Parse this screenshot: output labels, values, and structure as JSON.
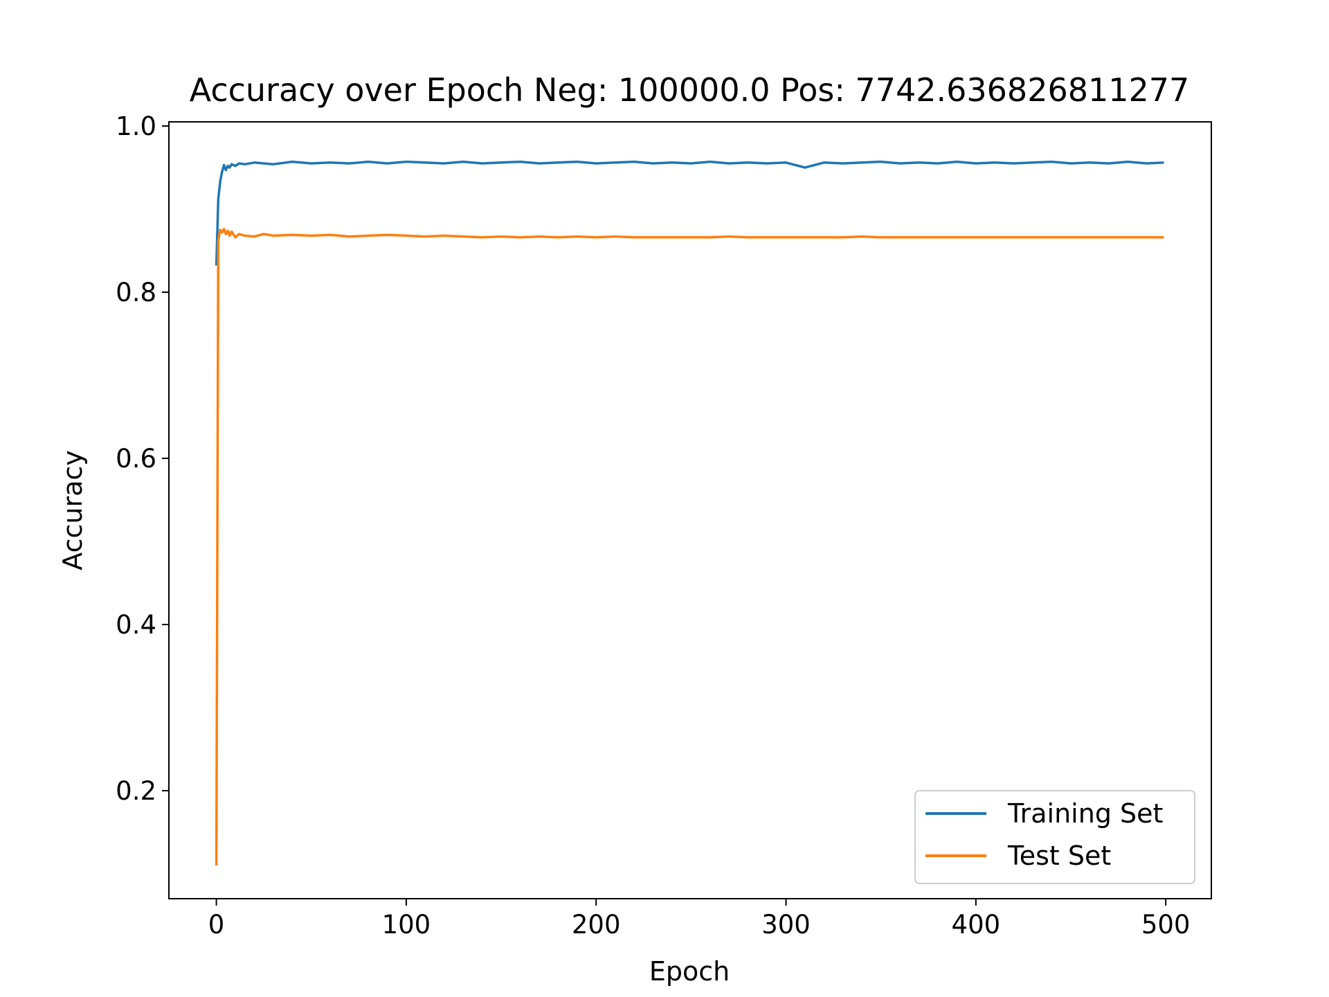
{
  "chart_data": {
    "type": "line",
    "title": "Accuracy over Epoch Neg: 100000.0 Pos: 7742.636826811277",
    "xlabel": "Epoch",
    "ylabel": "Accuracy",
    "xlim": [
      -25,
      524
    ],
    "ylim": [
      0.07,
      1.005
    ],
    "xticks": [
      0,
      100,
      200,
      300,
      400,
      500
    ],
    "xtick_labels": [
      "0",
      "100",
      "200",
      "300",
      "400",
      "500"
    ],
    "yticks": [
      0.2,
      0.4,
      0.6,
      0.8,
      1.0
    ],
    "ytick_labels": [
      "0.2",
      "0.4",
      "0.6",
      "0.8",
      "1.0"
    ],
    "grid": false,
    "legend_position": "lower right",
    "series": [
      {
        "name": "Training Set",
        "color": "#1f77b4",
        "x": [
          0,
          1,
          2,
          3,
          4,
          5,
          6,
          7,
          8,
          10,
          12,
          15,
          20,
          25,
          30,
          40,
          50,
          60,
          70,
          80,
          90,
          100,
          110,
          120,
          130,
          140,
          150,
          160,
          170,
          180,
          190,
          200,
          210,
          220,
          230,
          240,
          250,
          260,
          270,
          280,
          290,
          300,
          310,
          320,
          330,
          340,
          350,
          360,
          370,
          380,
          390,
          400,
          410,
          420,
          430,
          440,
          450,
          460,
          470,
          480,
          490,
          499
        ],
        "y": [
          0.832,
          0.912,
          0.933,
          0.945,
          0.953,
          0.947,
          0.952,
          0.95,
          0.954,
          0.952,
          0.955,
          0.954,
          0.956,
          0.955,
          0.954,
          0.957,
          0.955,
          0.956,
          0.955,
          0.957,
          0.955,
          0.957,
          0.956,
          0.955,
          0.957,
          0.955,
          0.956,
          0.957,
          0.955,
          0.956,
          0.957,
          0.955,
          0.956,
          0.957,
          0.955,
          0.956,
          0.955,
          0.957,
          0.955,
          0.956,
          0.955,
          0.956,
          0.95,
          0.956,
          0.955,
          0.956,
          0.957,
          0.955,
          0.956,
          0.955,
          0.957,
          0.955,
          0.956,
          0.955,
          0.956,
          0.957,
          0.955,
          0.956,
          0.955,
          0.957,
          0.955,
          0.956
        ]
      },
      {
        "name": "Test Set",
        "color": "#ff7f0e",
        "x": [
          0,
          1,
          2,
          3,
          4,
          5,
          6,
          7,
          8,
          10,
          12,
          15,
          20,
          25,
          30,
          40,
          50,
          60,
          70,
          80,
          90,
          100,
          110,
          120,
          130,
          140,
          150,
          160,
          170,
          180,
          190,
          200,
          210,
          220,
          230,
          240,
          250,
          260,
          270,
          280,
          290,
          300,
          310,
          320,
          330,
          340,
          350,
          360,
          370,
          380,
          390,
          400,
          410,
          420,
          430,
          440,
          450,
          460,
          470,
          480,
          490,
          499
        ],
        "y": [
          0.11,
          0.862,
          0.875,
          0.872,
          0.876,
          0.87,
          0.874,
          0.868,
          0.873,
          0.866,
          0.87,
          0.868,
          0.867,
          0.87,
          0.868,
          0.869,
          0.868,
          0.869,
          0.867,
          0.868,
          0.869,
          0.868,
          0.867,
          0.868,
          0.867,
          0.866,
          0.867,
          0.866,
          0.867,
          0.866,
          0.867,
          0.866,
          0.867,
          0.866,
          0.866,
          0.866,
          0.866,
          0.866,
          0.867,
          0.866,
          0.866,
          0.866,
          0.866,
          0.866,
          0.866,
          0.867,
          0.866,
          0.866,
          0.866,
          0.866,
          0.866,
          0.866,
          0.866,
          0.866,
          0.866,
          0.866,
          0.866,
          0.866,
          0.866,
          0.866,
          0.866,
          0.866
        ]
      }
    ]
  }
}
